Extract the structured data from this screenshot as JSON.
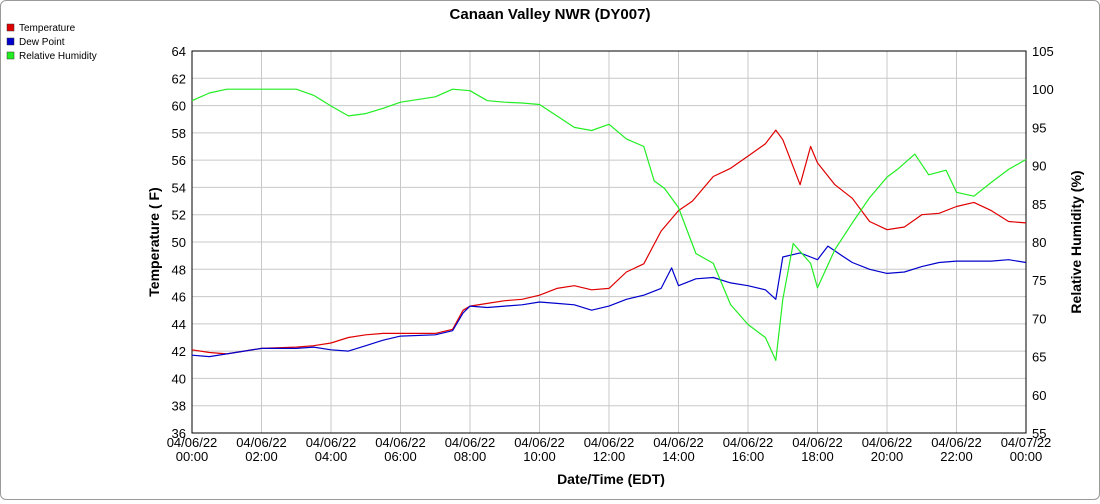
{
  "chart_data": {
    "type": "line",
    "title": "Canaan Valley NWR (DY007)",
    "xlabel": "Date/Time (EDT)",
    "ylabel_left": "Temperature ( F)",
    "ylabel_right": "Relative Humidity (%)",
    "ylim_left": [
      36,
      64
    ],
    "yticks_left": [
      "36",
      "38",
      "40",
      "42",
      "44",
      "46",
      "48",
      "50",
      "52",
      "54",
      "56",
      "58",
      "60",
      "62",
      "64"
    ],
    "ylim_right": [
      55,
      105
    ],
    "yticks_right": [
      "55",
      "60",
      "65",
      "70",
      "75",
      "80",
      "85",
      "90",
      "95",
      "100",
      "105"
    ],
    "xlim_hours": [
      0,
      24
    ],
    "xticks": [
      {
        "date": "04/06/22",
        "time": "00:00"
      },
      {
        "date": "04/06/22",
        "time": "02:00"
      },
      {
        "date": "04/06/22",
        "time": "04:00"
      },
      {
        "date": "04/06/22",
        "time": "06:00"
      },
      {
        "date": "04/06/22",
        "time": "08:00"
      },
      {
        "date": "04/06/22",
        "time": "10:00"
      },
      {
        "date": "04/06/22",
        "time": "12:00"
      },
      {
        "date": "04/06/22",
        "time": "14:00"
      },
      {
        "date": "04/06/22",
        "time": "16:00"
      },
      {
        "date": "04/06/22",
        "time": "18:00"
      },
      {
        "date": "04/06/22",
        "time": "20:00"
      },
      {
        "date": "04/06/22",
        "time": "22:00"
      },
      {
        "date": "04/07/22",
        "time": "00:00"
      }
    ],
    "grid": true,
    "legend_position": "top-left",
    "series": [
      {
        "name": "Temperature",
        "axis": "left",
        "color": "#e00000",
        "points": [
          [
            0,
            42.1
          ],
          [
            0.5,
            41.9
          ],
          [
            1,
            41.8
          ],
          [
            1.5,
            42.0
          ],
          [
            2,
            42.2
          ],
          [
            3,
            42.3
          ],
          [
            3.5,
            42.4
          ],
          [
            4,
            42.6
          ],
          [
            4.5,
            43.0
          ],
          [
            5,
            43.2
          ],
          [
            5.5,
            43.3
          ],
          [
            6,
            43.3
          ],
          [
            7,
            43.3
          ],
          [
            7.5,
            43.6
          ],
          [
            7.8,
            45.0
          ],
          [
            8,
            45.3
          ],
          [
            8.5,
            45.5
          ],
          [
            9,
            45.7
          ],
          [
            9.5,
            45.8
          ],
          [
            10,
            46.1
          ],
          [
            10.5,
            46.6
          ],
          [
            11,
            46.8
          ],
          [
            11.5,
            46.5
          ],
          [
            12,
            46.6
          ],
          [
            12.5,
            47.8
          ],
          [
            13,
            48.4
          ],
          [
            13.5,
            50.8
          ],
          [
            14,
            52.3
          ],
          [
            14.4,
            53.0
          ],
          [
            15,
            54.8
          ],
          [
            15.5,
            55.4
          ],
          [
            16,
            56.3
          ],
          [
            16.5,
            57.2
          ],
          [
            16.8,
            58.2
          ],
          [
            17,
            57.5
          ],
          [
            17.5,
            54.2
          ],
          [
            17.8,
            57.0
          ],
          [
            18,
            55.8
          ],
          [
            18.5,
            54.2
          ],
          [
            19,
            53.2
          ],
          [
            19.5,
            51.5
          ],
          [
            20,
            50.9
          ],
          [
            20.5,
            51.1
          ],
          [
            21,
            52.0
          ],
          [
            21.5,
            52.1
          ],
          [
            22,
            52.6
          ],
          [
            22.5,
            52.9
          ],
          [
            23,
            52.3
          ],
          [
            23.5,
            51.5
          ],
          [
            24,
            51.4
          ]
        ]
      },
      {
        "name": "Dew Point",
        "axis": "left",
        "color": "#0000cc",
        "points": [
          [
            0,
            41.7
          ],
          [
            0.5,
            41.6
          ],
          [
            1,
            41.8
          ],
          [
            1.5,
            42.0
          ],
          [
            2,
            42.2
          ],
          [
            3,
            42.2
          ],
          [
            3.5,
            42.3
          ],
          [
            4,
            42.1
          ],
          [
            4.5,
            42.0
          ],
          [
            5,
            42.4
          ],
          [
            5.5,
            42.8
          ],
          [
            6,
            43.1
          ],
          [
            7,
            43.2
          ],
          [
            7.5,
            43.5
          ],
          [
            7.8,
            44.8
          ],
          [
            8,
            45.3
          ],
          [
            8.5,
            45.2
          ],
          [
            9,
            45.3
          ],
          [
            9.5,
            45.4
          ],
          [
            10,
            45.6
          ],
          [
            10.5,
            45.5
          ],
          [
            11,
            45.4
          ],
          [
            11.5,
            45.0
          ],
          [
            12,
            45.3
          ],
          [
            12.5,
            45.8
          ],
          [
            13,
            46.1
          ],
          [
            13.5,
            46.6
          ],
          [
            13.8,
            48.1
          ],
          [
            14,
            46.8
          ],
          [
            14.5,
            47.3
          ],
          [
            15,
            47.4
          ],
          [
            15.5,
            47.0
          ],
          [
            16,
            46.8
          ],
          [
            16.5,
            46.5
          ],
          [
            16.8,
            45.8
          ],
          [
            17,
            48.9
          ],
          [
            17.5,
            49.2
          ],
          [
            17.8,
            48.9
          ],
          [
            18,
            48.7
          ],
          [
            18.3,
            49.7
          ],
          [
            18.7,
            49.0
          ],
          [
            19,
            48.5
          ],
          [
            19.5,
            48.0
          ],
          [
            20,
            47.7
          ],
          [
            20.5,
            47.8
          ],
          [
            21,
            48.2
          ],
          [
            21.5,
            48.5
          ],
          [
            22,
            48.6
          ],
          [
            22.5,
            48.6
          ],
          [
            23,
            48.6
          ],
          [
            23.5,
            48.7
          ],
          [
            24,
            48.5
          ]
        ]
      },
      {
        "name": "Relative Humidity",
        "axis": "right",
        "color": "#22ee22",
        "points": [
          [
            0,
            98.5
          ],
          [
            0.5,
            99.5
          ],
          [
            1,
            100.0
          ],
          [
            2,
            100.0
          ],
          [
            3,
            100.0
          ],
          [
            3.5,
            99.2
          ],
          [
            4,
            97.8
          ],
          [
            4.5,
            96.5
          ],
          [
            5,
            96.8
          ],
          [
            5.5,
            97.5
          ],
          [
            6,
            98.3
          ],
          [
            7,
            99.0
          ],
          [
            7.5,
            100.0
          ],
          [
            8,
            99.8
          ],
          [
            8.5,
            98.5
          ],
          [
            9,
            98.3
          ],
          [
            9.5,
            98.2
          ],
          [
            10,
            98.0
          ],
          [
            10.5,
            96.5
          ],
          [
            11,
            95.0
          ],
          [
            11.5,
            94.6
          ],
          [
            12,
            95.4
          ],
          [
            12.5,
            93.5
          ],
          [
            13,
            92.5
          ],
          [
            13.3,
            88.0
          ],
          [
            13.6,
            87.0
          ],
          [
            14,
            84.5
          ],
          [
            14.5,
            78.5
          ],
          [
            15,
            77.2
          ],
          [
            15.5,
            71.8
          ],
          [
            16,
            69.2
          ],
          [
            16.5,
            67.5
          ],
          [
            16.8,
            64.5
          ],
          [
            17,
            72.5
          ],
          [
            17.3,
            79.8
          ],
          [
            17.8,
            77.2
          ],
          [
            18,
            74.0
          ],
          [
            18.5,
            79.0
          ],
          [
            19,
            82.5
          ],
          [
            19.5,
            85.8
          ],
          [
            20,
            88.5
          ],
          [
            20.3,
            89.5
          ],
          [
            20.8,
            91.5
          ],
          [
            21.2,
            88.8
          ],
          [
            21.7,
            89.4
          ],
          [
            22,
            86.5
          ],
          [
            22.5,
            86.0
          ],
          [
            23,
            87.8
          ],
          [
            23.5,
            89.5
          ],
          [
            24,
            90.8
          ]
        ]
      }
    ]
  }
}
